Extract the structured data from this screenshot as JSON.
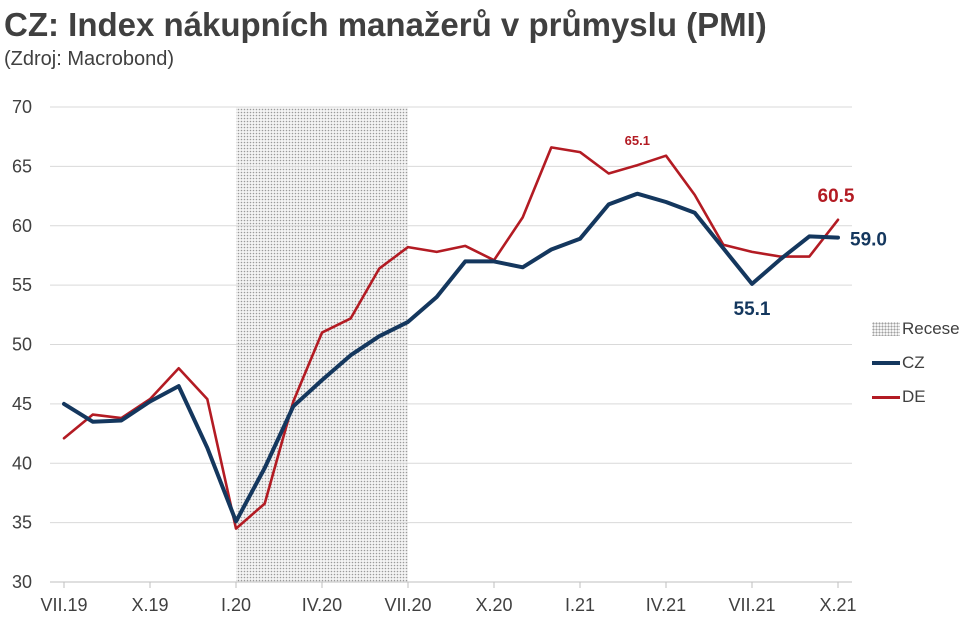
{
  "title": "CZ: Index nákupních manažerů v průmyslu (PMI)",
  "subtitle": "(Zdroj: Macrobond)",
  "colors": {
    "cz": "#14375e",
    "de": "#b31b23",
    "grid": "#d9d9d9",
    "text": "#404040"
  },
  "chart_data": {
    "type": "line",
    "title": "CZ: Index nákupních manažerů v průmyslu (PMI)",
    "subtitle": "(Zdroj: Macrobond)",
    "x_index": [
      0,
      1,
      2,
      3,
      4,
      5,
      6,
      7,
      8,
      9,
      10,
      11,
      12,
      13,
      14,
      15,
      16,
      17,
      18,
      19,
      20,
      21,
      22,
      23,
      24,
      25,
      26,
      27
    ],
    "x_tick_labels": [
      {
        "i": 0,
        "label": "VII.19"
      },
      {
        "i": 3,
        "label": "X.19"
      },
      {
        "i": 6,
        "label": "I.20"
      },
      {
        "i": 9,
        "label": "IV.20"
      },
      {
        "i": 12,
        "label": "VII.20"
      },
      {
        "i": 15,
        "label": "X.20"
      },
      {
        "i": 18,
        "label": "I.21"
      },
      {
        "i": 21,
        "label": "IV.21"
      },
      {
        "i": 24,
        "label": "VII.21"
      },
      {
        "i": 27,
        "label": "X.21"
      }
    ],
    "ylim": [
      30,
      70
    ],
    "y_ticks": [
      30,
      35,
      40,
      45,
      50,
      55,
      60,
      65,
      70
    ],
    "grid": true,
    "legend": "right",
    "recession": {
      "name": "Recese",
      "from_index": 6,
      "to_index": 12
    },
    "series": [
      {
        "name": "CZ",
        "values": [
          45.0,
          43.5,
          43.6,
          45.2,
          46.5,
          41.3,
          35.1,
          39.6,
          44.8,
          47.0,
          49.1,
          50.7,
          51.9,
          54.0,
          57.0,
          57.0,
          56.5,
          58.0,
          58.9,
          61.8,
          62.7,
          62.0,
          61.1,
          58.1,
          55.1,
          57.2,
          59.1,
          59.0
        ]
      },
      {
        "name": "DE",
        "values": [
          42.1,
          44.1,
          43.8,
          45.4,
          48.0,
          45.4,
          34.5,
          36.6,
          45.2,
          51.0,
          52.2,
          56.4,
          58.2,
          57.8,
          58.3,
          57.1,
          60.7,
          66.6,
          66.2,
          64.4,
          65.1,
          65.9,
          62.6,
          58.4,
          57.8,
          57.4,
          57.4,
          60.5
        ]
      }
    ],
    "annotations": [
      {
        "text": "65.1",
        "series": "DE",
        "index": 20
      },
      {
        "text": "60.5",
        "series": "DE",
        "index": 27
      },
      {
        "text": "55.1",
        "series": "CZ",
        "index": 24
      },
      {
        "text": "59.0",
        "series": "CZ",
        "index": 27
      }
    ]
  }
}
